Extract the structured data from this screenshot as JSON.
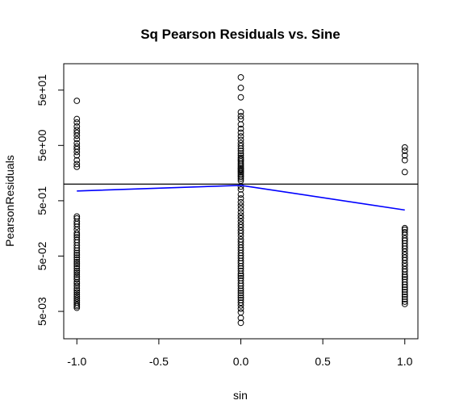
{
  "chart_data": {
    "type": "scatter",
    "title": "Sq Pearson Residuals vs. Sine",
    "xlabel": "sin",
    "ylabel": "PearsonResiduals",
    "x_axis": {
      "range": [
        -1.08,
        1.08
      ],
      "ticks": [
        -1.0,
        -0.5,
        0.0,
        0.5,
        1.0
      ],
      "tick_labels": [
        "-1.0",
        "-0.5",
        "0.0",
        "0.5",
        "1.0"
      ]
    },
    "y_axis": {
      "scale": "log10",
      "range": [
        0.0016,
        150
      ],
      "ticks": [
        0.005,
        0.05,
        0.5,
        5,
        50
      ],
      "tick_labels": [
        "5e-03",
        "5e-02",
        "5e-01",
        "5e+00",
        "5e+01"
      ]
    },
    "grid": false,
    "legend": "none",
    "reference_line": {
      "y": 1.0,
      "color": "#000000"
    },
    "colors": {
      "points": "#000000",
      "smooth_line": "#0000ff"
    },
    "smooth_line": {
      "x": [
        -1.0,
        0.0,
        1.0
      ],
      "y": [
        0.75,
        0.95,
        0.34
      ]
    },
    "series": [
      {
        "x": -1.0,
        "y": [
          32,
          15,
          13,
          11,
          9.5,
          8.5,
          7.5,
          6.5,
          5.5,
          4.8,
          4.3,
          3.8,
          3.3,
          2.7,
          2.3,
          2.05,
          0.26,
          0.24,
          0.21,
          0.19,
          0.17,
          0.15,
          0.13,
          0.12,
          0.11,
          0.098,
          0.088,
          0.078,
          0.07,
          0.063,
          0.057,
          0.052,
          0.047,
          0.043,
          0.039,
          0.036,
          0.033,
          0.03,
          0.027,
          0.025,
          0.023,
          0.021,
          0.019,
          0.017,
          0.016,
          0.0145,
          0.013,
          0.012,
          0.011,
          0.01,
          0.0092,
          0.0085,
          0.0078,
          0.0072,
          0.0066,
          0.0062,
          0.0058
        ]
      },
      {
        "x": 0.0,
        "y": [
          85,
          55,
          37,
          20,
          17,
          15,
          12,
          10,
          8.5,
          7.3,
          6.3,
          5.5,
          4.9,
          4.4,
          4.0,
          3.6,
          3.3,
          3.0,
          2.8,
          2.6,
          2.4,
          2.25,
          2.1,
          1.95,
          1.85,
          1.75,
          1.65,
          1.55,
          1.45,
          1.35,
          1.25,
          1.15,
          0.9,
          0.8,
          0.65,
          0.55,
          0.47,
          0.41,
          0.36,
          0.31,
          0.27,
          0.24,
          0.21,
          0.185,
          0.165,
          0.145,
          0.13,
          0.115,
          0.1,
          0.09,
          0.08,
          0.071,
          0.064,
          0.057,
          0.051,
          0.046,
          0.041,
          0.037,
          0.033,
          0.03,
          0.027,
          0.024,
          0.022,
          0.02,
          0.018,
          0.016,
          0.0145,
          0.013,
          0.0118,
          0.0107,
          0.0097,
          0.0088,
          0.008,
          0.0072,
          0.0064,
          0.0056,
          0.0048,
          0.0038,
          0.0031
        ]
      },
      {
        "x": 1.0,
        "y": [
          4.6,
          4.0,
          3.3,
          2.7,
          1.65,
          0.16,
          0.15,
          0.135,
          0.12,
          0.105,
          0.095,
          0.085,
          0.076,
          0.068,
          0.06,
          0.053,
          0.047,
          0.042,
          0.037,
          0.033,
          0.029,
          0.026,
          0.023,
          0.021,
          0.019,
          0.017,
          0.0152,
          0.0137,
          0.0124,
          0.0112,
          0.0101,
          0.0092,
          0.0083,
          0.0075,
          0.0068
        ]
      }
    ]
  }
}
